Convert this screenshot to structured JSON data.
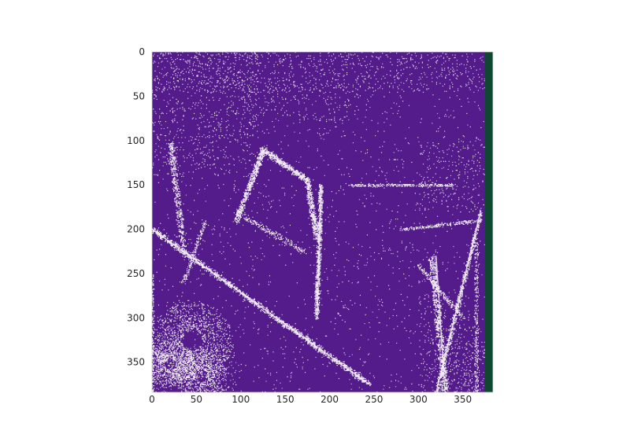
{
  "chart_data": {
    "type": "heatmap",
    "title": "",
    "xlabel": "",
    "ylabel": "",
    "grid": false,
    "xlim": [
      0,
      384
    ],
    "ylim": [
      384,
      0
    ],
    "x_ticks": [
      0,
      50,
      100,
      150,
      200,
      250,
      300,
      350
    ],
    "y_ticks": [
      0,
      50,
      100,
      150,
      200,
      250,
      300,
      350
    ],
    "x_tick_labels": [
      "0",
      "50",
      "100",
      "150",
      "200",
      "250",
      "300",
      "350"
    ],
    "y_tick_labels": [
      "0",
      "50",
      "100",
      "150",
      "200",
      "250",
      "300",
      "350"
    ],
    "image_shape": [
      384,
      384
    ],
    "colors": {
      "background_class": "#541b8b",
      "foreground_class": "#f1edf2",
      "right_edge_band": "#0f4730",
      "axis_text": "#262626"
    },
    "colored_columns": {
      "right_edge_band_x": [
        375,
        384
      ]
    },
    "visible_structures": [
      "white edge-detected outlines over purple background",
      "diagonal white line from upper-left toward lower-middle",
      "dense white texture in lower-left corner",
      "vertical white pillar-like structures near right side",
      "dark green vertical band at right edge"
    ]
  }
}
